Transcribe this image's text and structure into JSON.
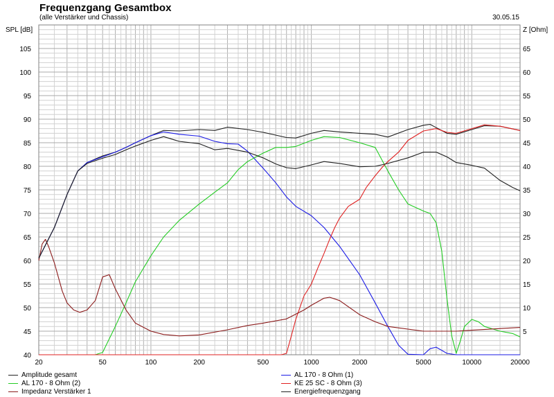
{
  "chart_data": {
    "type": "line",
    "title": "Frequenzgang Gesamtbox",
    "subtitle": "(alle Verstärker und Chassis)",
    "date": "30.05.15",
    "ylabel": "SPL [dB]",
    "y2label": "Z [Ohm]",
    "xscale": "log",
    "xlim": [
      20,
      20000
    ],
    "ylim": [
      40,
      110
    ],
    "y2lim": [
      0,
      70
    ],
    "grid": true,
    "x_ticks": [
      {
        "value": 20,
        "label": "20"
      },
      {
        "value": 50,
        "label": "50"
      },
      {
        "value": 100,
        "label": "100"
      },
      {
        "value": 200,
        "label": "200"
      },
      {
        "value": 500,
        "label": "500"
      },
      {
        "value": 1000,
        "label": "1000"
      },
      {
        "value": 2000,
        "label": "2000"
      },
      {
        "value": 5000,
        "label": "5000"
      },
      {
        "value": 10000,
        "label": "10000"
      },
      {
        "value": 20000,
        "label": "20000"
      }
    ],
    "y_ticks": [
      {
        "value": 40,
        "label": "40"
      },
      {
        "value": 45,
        "label": "45"
      },
      {
        "value": 50,
        "label": "50"
      },
      {
        "value": 55,
        "label": "55"
      },
      {
        "value": 60,
        "label": "60"
      },
      {
        "value": 65,
        "label": "65"
      },
      {
        "value": 70,
        "label": "70"
      },
      {
        "value": 75,
        "label": "75"
      },
      {
        "value": 80,
        "label": "80"
      },
      {
        "value": 85,
        "label": "85"
      },
      {
        "value": 90,
        "label": "90"
      },
      {
        "value": 95,
        "label": "95"
      },
      {
        "value": 100,
        "label": "100"
      },
      {
        "value": 105,
        "label": "105"
      }
    ],
    "y2_ticks": [
      {
        "value": 5,
        "label": "5"
      },
      {
        "value": 10,
        "label": "10"
      },
      {
        "value": 15,
        "label": "15"
      },
      {
        "value": 20,
        "label": "20"
      },
      {
        "value": 25,
        "label": "25"
      },
      {
        "value": 30,
        "label": "30"
      },
      {
        "value": 35,
        "label": "35"
      },
      {
        "value": 40,
        "label": "40"
      },
      {
        "value": 45,
        "label": "45"
      },
      {
        "value": 50,
        "label": "50"
      },
      {
        "value": 55,
        "label": "55"
      },
      {
        "value": 60,
        "label": "60"
      },
      {
        "value": 65,
        "label": "65"
      }
    ],
    "series": [
      {
        "name": "Amplitude gesamt",
        "color": "#202020",
        "axis": "left",
        "points": [
          [
            20,
            60.5
          ],
          [
            25,
            67
          ],
          [
            30,
            74
          ],
          [
            35,
            79
          ],
          [
            40,
            80.8
          ],
          [
            50,
            82.2
          ],
          [
            60,
            83
          ],
          [
            70,
            84
          ],
          [
            80,
            85
          ],
          [
            100,
            86.5
          ],
          [
            120,
            87.6
          ],
          [
            150,
            87.5
          ],
          [
            200,
            87.8
          ],
          [
            250,
            87.6
          ],
          [
            300,
            88.3
          ],
          [
            400,
            87.8
          ],
          [
            500,
            87.2
          ],
          [
            700,
            86.1
          ],
          [
            800,
            86
          ],
          [
            1000,
            87
          ],
          [
            1200,
            87.6
          ],
          [
            1500,
            87.3
          ],
          [
            2000,
            87
          ],
          [
            2500,
            86.8
          ],
          [
            3000,
            86.2
          ],
          [
            4000,
            87.8
          ],
          [
            5000,
            88.7
          ],
          [
            5500,
            88.9
          ],
          [
            6000,
            88.2
          ],
          [
            7000,
            87
          ],
          [
            8000,
            86.8
          ],
          [
            10000,
            87.8
          ],
          [
            12000,
            88.6
          ],
          [
            15000,
            88.5
          ],
          [
            20000,
            87.6
          ]
        ]
      },
      {
        "name": "AL 170 - 8 Ohm (1)",
        "color": "#1a1ae6",
        "axis": "left",
        "points": [
          [
            20,
            60.5
          ],
          [
            25,
            67
          ],
          [
            30,
            74
          ],
          [
            35,
            79
          ],
          [
            40,
            80.8
          ],
          [
            50,
            82
          ],
          [
            60,
            83
          ],
          [
            70,
            84
          ],
          [
            80,
            85
          ],
          [
            100,
            86.5
          ],
          [
            120,
            87.3
          ],
          [
            150,
            86.8
          ],
          [
            200,
            86.4
          ],
          [
            250,
            85.3
          ],
          [
            300,
            84.8
          ],
          [
            350,
            84.7
          ],
          [
            400,
            83.2
          ],
          [
            500,
            79.6
          ],
          [
            600,
            76.5
          ],
          [
            700,
            73.5
          ],
          [
            800,
            71.5
          ],
          [
            1000,
            69.5
          ],
          [
            1200,
            67
          ],
          [
            1500,
            63
          ],
          [
            2000,
            57
          ],
          [
            2500,
            51
          ],
          [
            3000,
            46
          ],
          [
            3500,
            42
          ],
          [
            4000,
            40.1
          ],
          [
            5000,
            40
          ],
          [
            5500,
            41.3
          ],
          [
            6000,
            41.6
          ],
          [
            7000,
            40.3
          ],
          [
            8000,
            40
          ],
          [
            20000,
            40
          ]
        ]
      },
      {
        "name": "AL 170 - 8 Ohm (2)",
        "color": "#22cc22",
        "axis": "left",
        "points": [
          [
            20,
            40
          ],
          [
            45,
            40
          ],
          [
            50,
            40.5
          ],
          [
            60,
            46
          ],
          [
            70,
            51
          ],
          [
            80,
            55.5
          ],
          [
            100,
            61
          ],
          [
            120,
            65
          ],
          [
            150,
            68.5
          ],
          [
            200,
            72
          ],
          [
            250,
            74.5
          ],
          [
            300,
            76.5
          ],
          [
            350,
            79.3
          ],
          [
            400,
            81
          ],
          [
            500,
            82.8
          ],
          [
            600,
            84
          ],
          [
            700,
            84
          ],
          [
            800,
            84.2
          ],
          [
            1000,
            85.5
          ],
          [
            1200,
            86.3
          ],
          [
            1500,
            86.1
          ],
          [
            2000,
            85
          ],
          [
            2500,
            84
          ],
          [
            3000,
            79
          ],
          [
            3500,
            75
          ],
          [
            4000,
            72
          ],
          [
            5000,
            70.5
          ],
          [
            5500,
            70
          ],
          [
            6000,
            68
          ],
          [
            6500,
            62
          ],
          [
            7000,
            52
          ],
          [
            7500,
            44
          ],
          [
            8000,
            40.3
          ],
          [
            8500,
            43
          ],
          [
            9000,
            46
          ],
          [
            10000,
            47.5
          ],
          [
            11000,
            47
          ],
          [
            12000,
            46
          ],
          [
            15000,
            45
          ],
          [
            18000,
            44.5
          ],
          [
            20000,
            43.8
          ]
        ]
      },
      {
        "name": "KE 25 SC - 8 Ohm   (3)",
        "color": "#e02020",
        "axis": "left",
        "points": [
          [
            20,
            40
          ],
          [
            650,
            40
          ],
          [
            700,
            40.3
          ],
          [
            750,
            44
          ],
          [
            800,
            47.5
          ],
          [
            900,
            52.5
          ],
          [
            1000,
            55
          ],
          [
            1100,
            58.5
          ],
          [
            1200,
            61.5
          ],
          [
            1300,
            64.5
          ],
          [
            1400,
            67
          ],
          [
            1500,
            69
          ],
          [
            1700,
            71.5
          ],
          [
            2000,
            73
          ],
          [
            2200,
            75.5
          ],
          [
            2500,
            78
          ],
          [
            2800,
            80
          ],
          [
            3000,
            81
          ],
          [
            3500,
            83
          ],
          [
            4000,
            85.5
          ],
          [
            5000,
            87.5
          ],
          [
            6000,
            88
          ],
          [
            7000,
            87.2
          ],
          [
            8000,
            87
          ],
          [
            10000,
            88
          ],
          [
            12000,
            88.8
          ],
          [
            15000,
            88.5
          ],
          [
            20000,
            87.6
          ]
        ]
      },
      {
        "name": "Impedanz Verstärker 1",
        "color": "#8b1a1a",
        "axis": "right",
        "points": [
          [
            20,
            20
          ],
          [
            21,
            23.5
          ],
          [
            22,
            24.5
          ],
          [
            23,
            23
          ],
          [
            25,
            19.5
          ],
          [
            28,
            13.5
          ],
          [
            30,
            11
          ],
          [
            33,
            9.5
          ],
          [
            36,
            9
          ],
          [
            40,
            9.5
          ],
          [
            45,
            11.5
          ],
          [
            50,
            16.5
          ],
          [
            55,
            17
          ],
          [
            60,
            14
          ],
          [
            70,
            9.5
          ],
          [
            80,
            6.7
          ],
          [
            100,
            5
          ],
          [
            120,
            4.3
          ],
          [
            150,
            4
          ],
          [
            200,
            4.2
          ],
          [
            300,
            5.3
          ],
          [
            400,
            6.2
          ],
          [
            500,
            6.7
          ],
          [
            700,
            7.6
          ],
          [
            900,
            9.5
          ],
          [
            1000,
            10.5
          ],
          [
            1200,
            12
          ],
          [
            1300,
            12.2
          ],
          [
            1500,
            11.5
          ],
          [
            2000,
            8.5
          ],
          [
            2500,
            7
          ],
          [
            3000,
            6
          ],
          [
            5000,
            5
          ],
          [
            8000,
            5
          ],
          [
            10000,
            5.2
          ],
          [
            20000,
            5.8
          ]
        ]
      },
      {
        "name": "Energiefrequenzgang",
        "color": "#202020",
        "axis": "left",
        "points": [
          [
            20,
            60.5
          ],
          [
            25,
            67
          ],
          [
            30,
            74
          ],
          [
            35,
            79
          ],
          [
            40,
            80.6
          ],
          [
            50,
            81.7
          ],
          [
            60,
            82.5
          ],
          [
            70,
            83.5
          ],
          [
            80,
            84.3
          ],
          [
            100,
            85.5
          ],
          [
            120,
            86.3
          ],
          [
            150,
            85.3
          ],
          [
            200,
            84.8
          ],
          [
            250,
            83.5
          ],
          [
            300,
            83.8
          ],
          [
            400,
            83
          ],
          [
            500,
            81.8
          ],
          [
            600,
            80.5
          ],
          [
            700,
            79.7
          ],
          [
            800,
            79.5
          ],
          [
            1000,
            80.3
          ],
          [
            1200,
            81
          ],
          [
            1500,
            80.6
          ],
          [
            2000,
            79.9
          ],
          [
            2500,
            80
          ],
          [
            3000,
            80.6
          ],
          [
            4000,
            81.8
          ],
          [
            5000,
            83
          ],
          [
            6000,
            83
          ],
          [
            7000,
            82
          ],
          [
            8000,
            80.8
          ],
          [
            10000,
            80.2
          ],
          [
            12000,
            79.6
          ],
          [
            15000,
            77
          ],
          [
            18000,
            75.5
          ],
          [
            20000,
            74.8
          ]
        ]
      }
    ],
    "legend": [
      {
        "label": "Amplitude gesamt",
        "color": "#202020"
      },
      {
        "label": "AL 170 - 8 Ohm (1)",
        "color": "#1a1ae6"
      },
      {
        "label": "AL 170 - 8 Ohm (2)",
        "color": "#22cc22"
      },
      {
        "label": "KE 25 SC - 8 Ohm   (3)",
        "color": "#e02020"
      },
      {
        "label": "Impedanz Verstärker 1",
        "color": "#8b1a1a"
      },
      {
        "label": "Energiefrequenzgang",
        "color": "#202020"
      }
    ]
  }
}
